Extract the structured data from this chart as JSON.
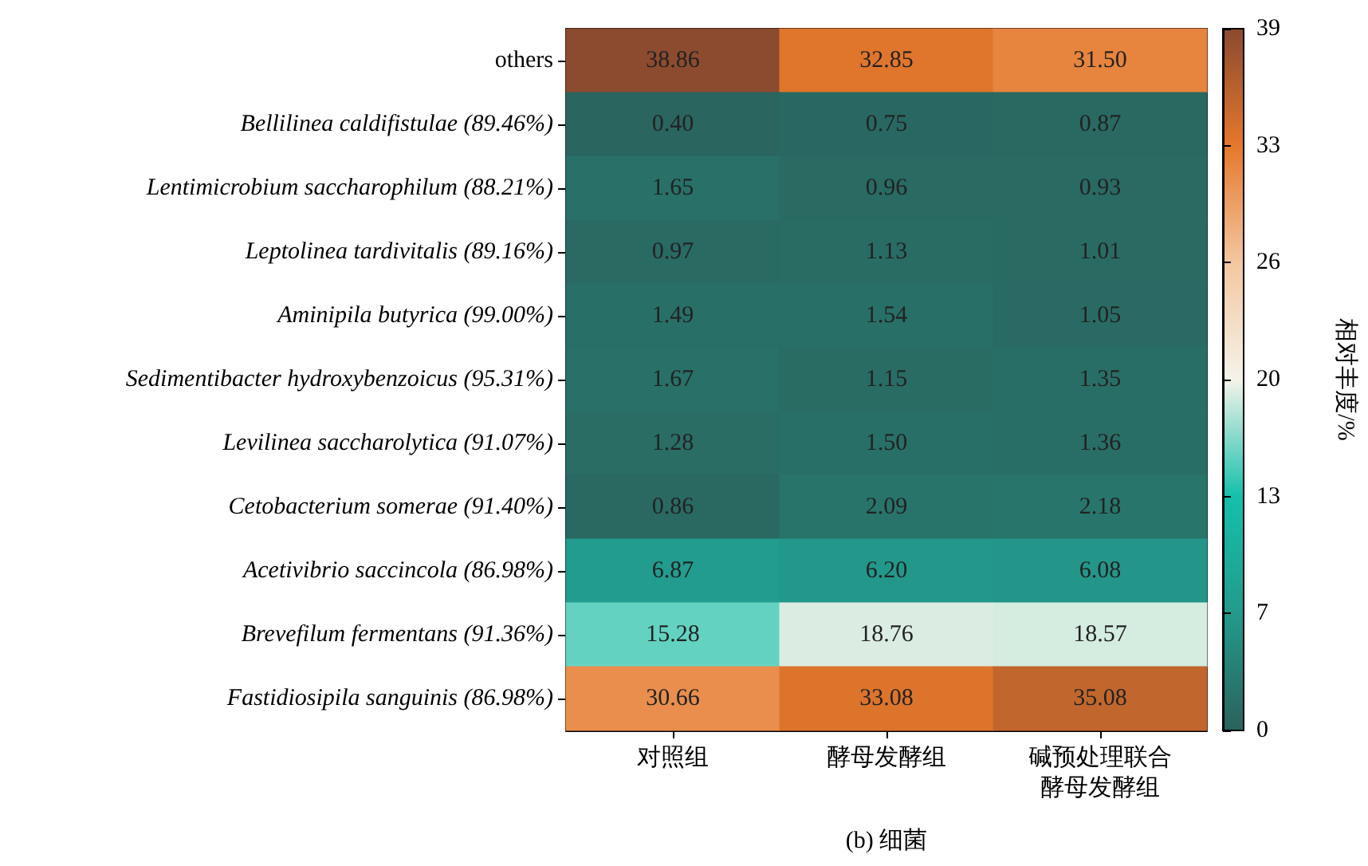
{
  "chart_data": {
    "type": "heatmap",
    "xlabel": "(b) 细菌",
    "clabel": "相对丰度/%",
    "categories": [
      "对照组",
      "酵母发酵组",
      "碱预处理联合酵母发酵组"
    ],
    "y_categories": [
      "others",
      "Bellilinea caldifistulae (89.46%)",
      "Lentimicrobium saccharophilum (88.21%)",
      "Leptolinea tardivitalis (89.16%)",
      "Aminipila butyrica (99.00%)",
      "Sedimentibacter hydroxybenzoicus (95.31%)",
      "Levilinea saccharolytica (91.07%)",
      "Cetobacterium somerae (91.40%)",
      "Acetivibrio saccincola (86.98%)",
      "Brevefilum fermentans (91.36%)",
      "Fastidiosipila sanguinis (86.98%)"
    ],
    "cells": [
      [
        38.86,
        32.85,
        31.5
      ],
      [
        0.4,
        0.75,
        0.87
      ],
      [
        1.65,
        0.96,
        0.93
      ],
      [
        0.97,
        1.13,
        1.01
      ],
      [
        1.49,
        1.54,
        1.05
      ],
      [
        1.67,
        1.15,
        1.35
      ],
      [
        1.28,
        1.5,
        1.36
      ],
      [
        0.86,
        2.09,
        2.18
      ],
      [
        6.87,
        6.2,
        6.08
      ],
      [
        15.28,
        18.76,
        18.57
      ],
      [
        30.66,
        33.08,
        35.08
      ]
    ],
    "cell_labels": [
      [
        "38.86",
        "32.85",
        "31.50"
      ],
      [
        "0.40",
        "0.75",
        "0.87"
      ],
      [
        "1.65",
        "0.96",
        "0.93"
      ],
      [
        "0.97",
        "1.13",
        "1.01"
      ],
      [
        "1.49",
        "1.54",
        "1.05"
      ],
      [
        "1.67",
        "1.15",
        "1.35"
      ],
      [
        "1.28",
        "1.50",
        "1.36"
      ],
      [
        "0.86",
        "2.09",
        "2.18"
      ],
      [
        "6.87",
        "6.20",
        "6.08"
      ],
      [
        "15.28",
        "18.76",
        "18.57"
      ],
      [
        "30.66",
        "33.08",
        "35.08"
      ]
    ],
    "clim": [
      0,
      39
    ],
    "cticks": [
      0,
      {
        "value": 6.5,
        "label": "7"
      },
      13,
      {
        "value": 19.5,
        "label": "20"
      },
      26,
      {
        "value": 32.5,
        "label": "33"
      },
      39
    ]
  }
}
